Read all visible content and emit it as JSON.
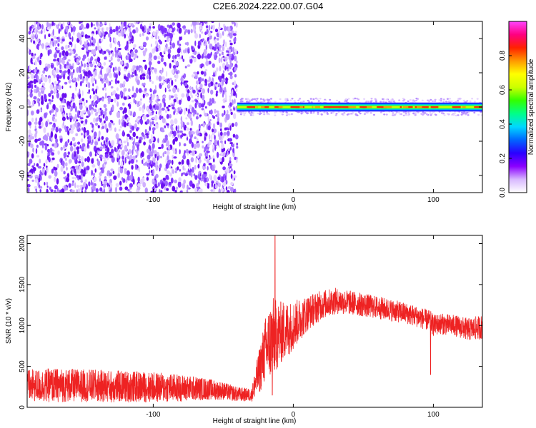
{
  "figure": {
    "title": "C2E6.2024.222.00.07.G04"
  },
  "chart_data": [
    {
      "type": "heatmap",
      "xlabel": "Height of straight line (km)",
      "ylabel": "Frequency (Hz)",
      "xlim": [
        -190,
        135
      ],
      "ylim": [
        -50,
        50
      ],
      "xticks": [
        -100,
        0,
        100
      ],
      "yticks": [
        -40,
        -20,
        0,
        20,
        40
      ],
      "noise_region_x": [
        -190,
        -40
      ],
      "signal_band": {
        "x_start": -40,
        "x_end": 135,
        "center_freq_hz": 0,
        "half_width_hz": 3
      },
      "grid": false,
      "colorbar": {
        "label": "Normalized spectral amplitude",
        "range": [
          0,
          1
        ],
        "ticks": [
          "0.0",
          "0.2",
          "0.4",
          "0.6",
          "0.8"
        ],
        "colormap": [
          "#ffffff",
          "#d8b8ff",
          "#8a00ff",
          "#2a00ff",
          "#0066ff",
          "#00d8ff",
          "#00ff88",
          "#33ff00",
          "#ccff00",
          "#ffff00",
          "#ff9900",
          "#ff2200",
          "#ff0080",
          "#ff44ff"
        ]
      }
    },
    {
      "type": "line",
      "xlabel": "Height of straight line (km)",
      "ylabel": "SNR (10 * v/v)",
      "xlim": [
        -190,
        135
      ],
      "ylim": [
        0,
        2100
      ],
      "xticks": [
        -100,
        0,
        100
      ],
      "yticks": [
        0,
        500,
        1000,
        1500,
        2000
      ],
      "grid": false,
      "series": [
        {
          "color": "#ee2222",
          "envelope": {
            "x": [
              -190,
              -170,
              -150,
              -130,
              -110,
              -90,
              -70,
              -60,
              -50,
              -40,
              -30,
              -25,
              -20,
              -15,
              -10,
              -5,
              0,
              10,
              20,
              30,
              40,
              60,
              80,
              90,
              98,
              100,
              105,
              115,
              125,
              135
            ],
            "center": [
              260,
              270,
              265,
              255,
              250,
              240,
              230,
              220,
              200,
              160,
              150,
              400,
              700,
              850,
              900,
              950,
              1000,
              1150,
              1250,
              1300,
              1280,
              1220,
              1150,
              1100,
              1050,
              1000,
              1020,
              1000,
              950,
              980
            ],
            "spread": [
              200,
              210,
              200,
              200,
              190,
              180,
              150,
              130,
              110,
              90,
              80,
              260,
              400,
              500,
              400,
              350,
              300,
              220,
              180,
              160,
              150,
              140,
              130,
              130,
              130,
              130,
              130,
              130,
              140,
              150
            ]
          },
          "features": [
            {
              "x": -13,
              "y": 2100
            },
            {
              "x": -15,
              "y": 150
            },
            {
              "x": 98,
              "y": 400
            }
          ]
        }
      ]
    }
  ]
}
